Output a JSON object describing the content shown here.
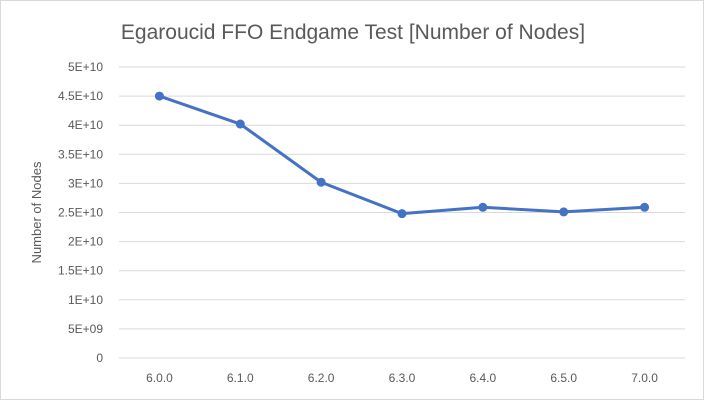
{
  "chart_data": {
    "type": "line",
    "title": "Egaroucid FFO Endgame Test [Number of Nodes]",
    "xlabel": "",
    "ylabel": "Number of Nodes",
    "categories": [
      "6.0.0",
      "6.1.0",
      "6.2.0",
      "6.3.0",
      "6.4.0",
      "6.5.0",
      "7.0.0"
    ],
    "series": [
      {
        "values": [
          45000000000,
          40200000000,
          30200000000,
          24800000000,
          25900000000,
          25100000000,
          25900000000
        ],
        "color": "#4472c4"
      }
    ],
    "ylim": [
      0,
      50000000000
    ],
    "y_ticks": [
      0,
      5000000000,
      10000000000,
      15000000000,
      20000000000,
      25000000000,
      30000000000,
      35000000000,
      40000000000,
      45000000000,
      50000000000
    ],
    "y_tick_labels": [
      "0",
      "5E+09",
      "1E+10",
      "1.5E+10",
      "2E+10",
      "2.5E+10",
      "3E+10",
      "3.5E+10",
      "4E+10",
      "4.5E+10",
      "5E+10"
    ],
    "grid": true,
    "legend": "none",
    "gridline_color": "#d9d9d9",
    "text_color": "#595959"
  }
}
